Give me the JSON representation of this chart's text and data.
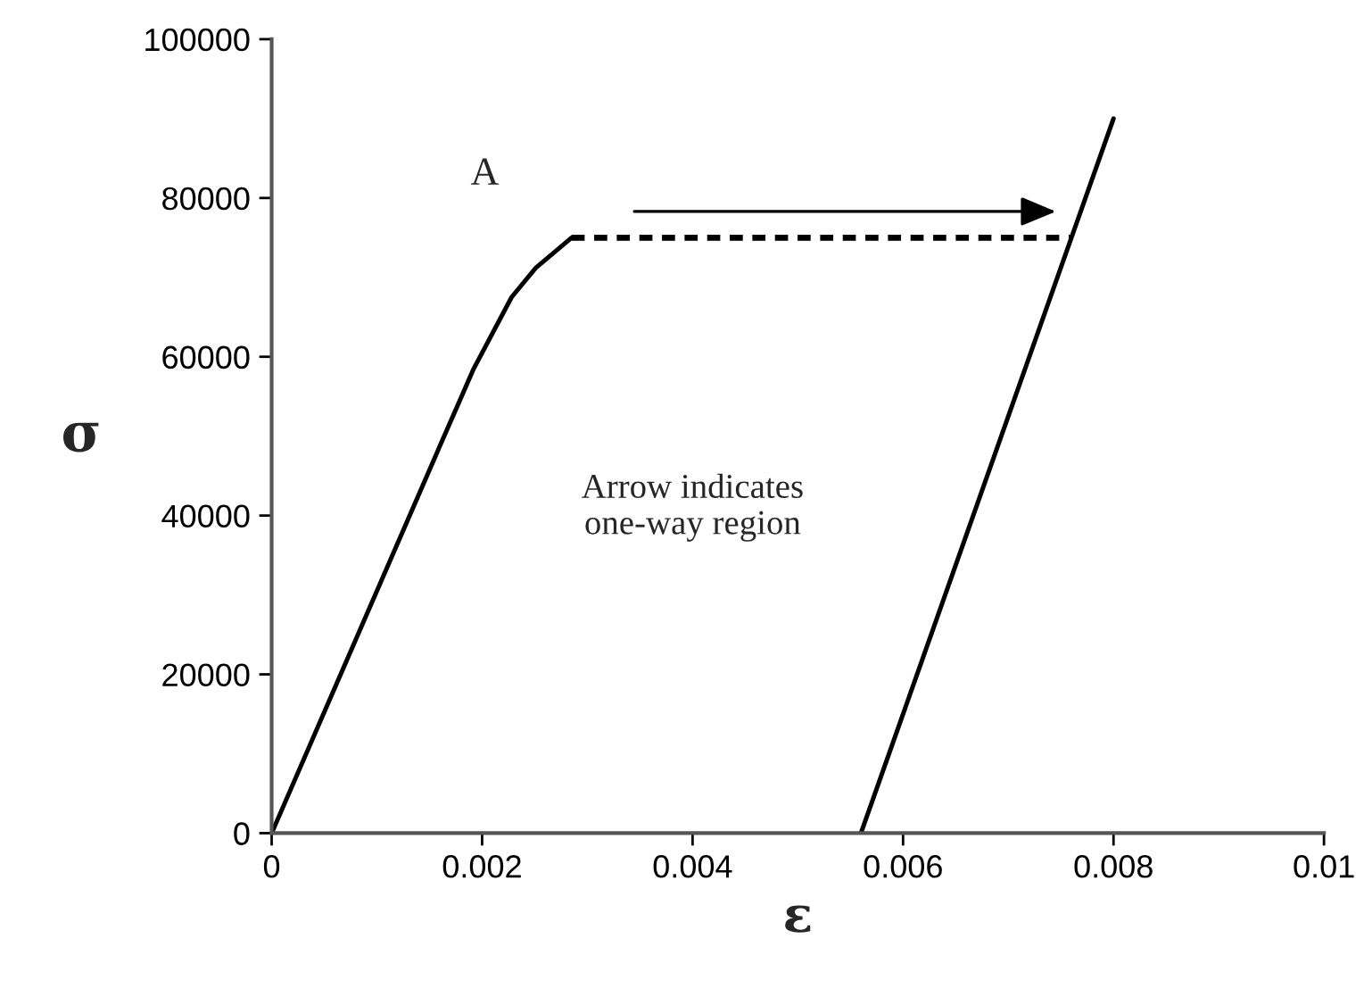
{
  "chart_data": {
    "type": "line",
    "xlabel": "ε",
    "ylabel": "σ",
    "xlim": [
      0,
      0.01
    ],
    "xticks": [
      0,
      0.002,
      0.004,
      0.006,
      0.008,
      0.01
    ],
    "ylim": [
      0,
      100000
    ],
    "yticks": [
      0,
      20000,
      40000,
      60000,
      80000,
      100000
    ],
    "series": [
      {
        "color": "#000000",
        "line_style": "solid",
        "x": [
          0,
          0.0016,
          0.00192,
          0.00228,
          0.00251,
          0.00285
        ],
        "values": [
          0,
          48800,
          58500,
          67500,
          71200,
          75000
        ]
      },
      {
        "color": "#000000",
        "line_style": "dashed",
        "x": [
          0.00285,
          0.0076
        ],
        "values": [
          75000,
          75000
        ]
      },
      {
        "color": "#000000",
        "line_style": "solid",
        "x": [
          0.0056,
          0.008
        ],
        "values": [
          0,
          90000
        ]
      }
    ],
    "annotations": [
      {
        "text": "A",
        "x": 0.00285,
        "y": 75000
      },
      "Arrow indicates\none-way region"
    ],
    "grid": false,
    "legend": false,
    "marker": "none"
  }
}
